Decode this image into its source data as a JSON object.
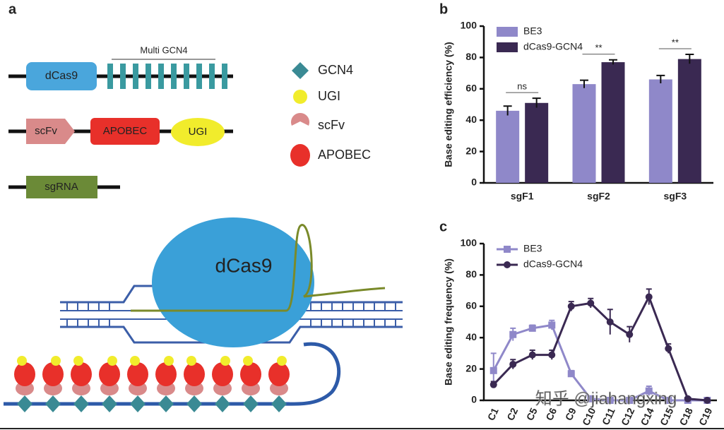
{
  "diagram": {
    "panel_label": "a",
    "construct_labels": {
      "multi": "Multi GCN4",
      "dcas9": "dCas9",
      "scfv": "scFv",
      "apobec": "APOBEC",
      "ugi": "UGI",
      "sgrna": "sgRNA"
    },
    "legend": [
      "GCN4",
      "UGI",
      "scFv",
      "APOBEC"
    ],
    "complex_label": "dCas9"
  },
  "watermark": "知乎 @jiahangxing",
  "chart_data": [
    {
      "type": "bar",
      "panel_label": "b",
      "ylabel": "Base editing efficiency (%)",
      "categories": [
        "sgF1",
        "sgF2",
        "sgF3"
      ],
      "series": [
        {
          "name": "BE3",
          "color": "#8f88c9",
          "values": [
            46,
            63,
            66
          ],
          "errors": [
            3,
            2.5,
            2.5
          ]
        },
        {
          "name": "dCas9-GCN4",
          "color": "#3a2952",
          "values": [
            51,
            77,
            79
          ],
          "errors": [
            3,
            1.5,
            3
          ]
        }
      ],
      "annotations": [
        "ns",
        "**",
        "**"
      ],
      "ylim": [
        0,
        100
      ],
      "yticks": [
        0,
        20,
        40,
        60,
        80,
        100
      ],
      "legend": "upper left"
    },
    {
      "type": "line",
      "panel_label": "c",
      "ylabel": "Base editing frequency (%)",
      "categories": [
        "C1",
        "C2",
        "C5",
        "C6",
        "C9",
        "C10",
        "C11",
        "C12",
        "C14",
        "C15",
        "C18",
        "C19"
      ],
      "series": [
        {
          "name": "BE3",
          "color": "#8f88c9",
          "marker": "square",
          "values": [
            19,
            42,
            46,
            48,
            17,
            1,
            0,
            0,
            6,
            0,
            0,
            0
          ],
          "errors": [
            11,
            4,
            2,
            3,
            2,
            0,
            0,
            0,
            3,
            0,
            0,
            0
          ]
        },
        {
          "name": "dCas9-GCN4",
          "color": "#3a2952",
          "marker": "circle",
          "values": [
            10,
            23,
            29,
            29,
            60,
            62,
            50,
            42,
            66,
            33,
            1,
            0
          ],
          "errors": [
            2,
            3,
            3,
            3,
            3,
            3,
            8,
            5,
            5,
            3,
            0,
            0
          ]
        }
      ],
      "ylim": [
        0,
        100
      ],
      "yticks": [
        0,
        20,
        40,
        60,
        80,
        100
      ],
      "legend": "upper left"
    }
  ]
}
